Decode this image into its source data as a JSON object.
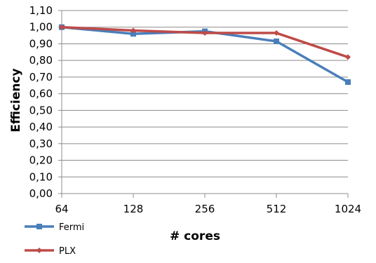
{
  "chart_data": {
    "type": "line",
    "title": "",
    "xlabel": "# cores",
    "ylabel": "Efficiency",
    "categories": [
      "64",
      "128",
      "256",
      "512",
      "1024"
    ],
    "y_ticks": [
      "0,00",
      "0,10",
      "0,20",
      "0,30",
      "0,40",
      "0,50",
      "0,60",
      "0,70",
      "0,80",
      "0,90",
      "1,00",
      "1,10"
    ],
    "ylim": [
      0,
      1.1
    ],
    "grid": true,
    "legend_position": "bottom-left",
    "series": [
      {
        "name": "Fermi",
        "values": [
          1.0,
          0.96,
          0.975,
          0.915,
          0.67
        ],
        "color": "#4a7ebb",
        "marker": "square"
      },
      {
        "name": "PLX",
        "values": [
          1.0,
          0.98,
          0.965,
          0.965,
          0.82
        ],
        "color": "#be4b48",
        "marker": "diamond"
      }
    ]
  }
}
